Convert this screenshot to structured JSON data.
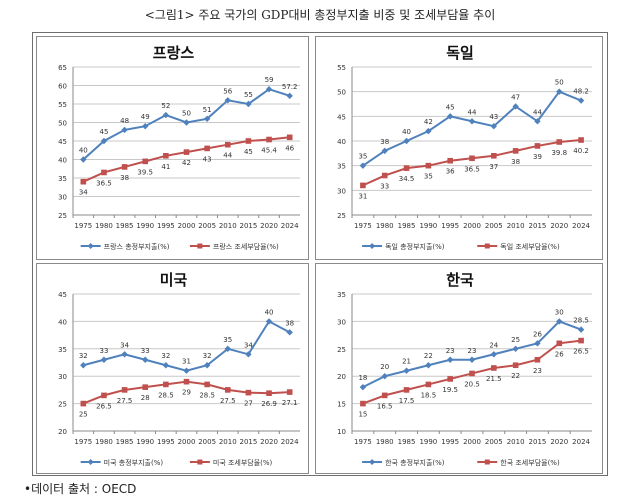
{
  "figure": {
    "title": "<그림1> 주요 국가의 GDP대비 총정부지출 비중 및 조세부담율 추이",
    "source": "•데이터 출처 : OECD"
  },
  "colors": {
    "spending": "#4f81bd",
    "tax": "#c0504d",
    "grid": "#c8c8c8",
    "axis": "#8a8a8a"
  },
  "chart_data": [
    {
      "type": "line",
      "title": "프랑스",
      "categories": [
        "1975",
        "1980",
        "1985",
        "1990",
        "1995",
        "2000",
        "2005",
        "2010",
        "2015",
        "2020",
        "2024"
      ],
      "ylim": [
        25,
        65
      ],
      "yticks": [
        25,
        30,
        35,
        40,
        45,
        50,
        55,
        60,
        65
      ],
      "grid": true,
      "legend": "bottom",
      "series": [
        {
          "name": "프랑스 총정부지출(%)",
          "values": [
            40,
            45,
            48,
            49,
            52,
            50,
            51,
            56,
            55,
            59,
            57.2
          ],
          "labels": [
            "40",
            "45",
            "48",
            "49",
            "52",
            "50",
            "51",
            "56",
            "55",
            "59",
            "57.2"
          ]
        },
        {
          "name": "프랑스 조세부담율(%)",
          "values": [
            34,
            36.5,
            38,
            39.5,
            41,
            42,
            43,
            44,
            45,
            45.4,
            46
          ],
          "labels": [
            "34",
            "36.5",
            "38",
            "39.5",
            "41",
            "42",
            "43",
            "44",
            "45",
            "45.4",
            "46"
          ]
        }
      ]
    },
    {
      "type": "line",
      "title": "독일",
      "categories": [
        "1975",
        "1980",
        "1985",
        "1990",
        "1995",
        "2000",
        "2005",
        "2010",
        "2015",
        "2020",
        "2024"
      ],
      "ylim": [
        25,
        55
      ],
      "yticks": [
        25,
        30,
        35,
        40,
        45,
        50,
        55
      ],
      "grid": true,
      "legend": "bottom",
      "series": [
        {
          "name": "독일 총정부지출(%)",
          "values": [
            35,
            38,
            40,
            42,
            45,
            44,
            43,
            47,
            44,
            50,
            48.2
          ],
          "labels": [
            "35",
            "38",
            "40",
            "42",
            "45",
            "44",
            "43",
            "47",
            "44",
            "50",
            "48.2"
          ]
        },
        {
          "name": "독일 조세부담율(%)",
          "values": [
            31,
            33,
            34.5,
            35,
            36,
            36.5,
            37,
            38,
            39,
            39.8,
            40.2
          ],
          "labels": [
            "31",
            "33",
            "34.5",
            "35",
            "36",
            "36.5",
            "37",
            "38",
            "39",
            "39.8",
            "40.2"
          ]
        }
      ]
    },
    {
      "type": "line",
      "title": "미국",
      "categories": [
        "1975",
        "1980",
        "1985",
        "1990",
        "1995",
        "2000",
        "2005",
        "2010",
        "2015",
        "2020",
        "2024"
      ],
      "ylim": [
        20,
        45
      ],
      "yticks": [
        20,
        25,
        30,
        35,
        40,
        45
      ],
      "grid": true,
      "legend": "bottom",
      "series": [
        {
          "name": "미국 총정부지출(%)",
          "values": [
            32,
            33,
            34,
            33,
            32,
            31,
            32,
            35,
            34,
            40,
            38
          ],
          "labels": [
            "32",
            "33",
            "34",
            "33",
            "32",
            "31",
            "32",
            "35",
            "34",
            "40",
            "38"
          ]
        },
        {
          "name": "미국 조세부담율(%)",
          "values": [
            25,
            26.5,
            27.5,
            28,
            28.5,
            29,
            28.5,
            27.5,
            27,
            26.9,
            27.1
          ],
          "labels": [
            "25",
            "26.5",
            "27.5",
            "28",
            "28.5",
            "29",
            "28.5",
            "27.5",
            "27",
            "26.9",
            "27.1"
          ]
        }
      ]
    },
    {
      "type": "line",
      "title": "한국",
      "categories": [
        "1975",
        "1980",
        "1985",
        "1990",
        "1995",
        "2000",
        "2005",
        "2010",
        "2015",
        "2020",
        "2024"
      ],
      "ylim": [
        10,
        35
      ],
      "yticks": [
        10,
        15,
        20,
        25,
        30,
        35
      ],
      "grid": true,
      "legend": "bottom",
      "series": [
        {
          "name": "한국 총정부지출(%)",
          "values": [
            18,
            20,
            21,
            22,
            23,
            23,
            24,
            25,
            26,
            30,
            28.5
          ],
          "labels": [
            "18",
            "20",
            "21",
            "22",
            "23",
            "23",
            "24",
            "25",
            "26",
            "30",
            "28.5"
          ]
        },
        {
          "name": "한국 조세부담율(%)",
          "values": [
            15,
            16.5,
            17.5,
            18.5,
            19.5,
            20.5,
            21.5,
            22,
            23,
            26,
            26.5
          ],
          "labels": [
            "15",
            "16.5",
            "17.5",
            "18.5",
            "19.5",
            "20.5",
            "21.5",
            "22",
            "23",
            "26",
            "26.5"
          ]
        }
      ]
    }
  ]
}
